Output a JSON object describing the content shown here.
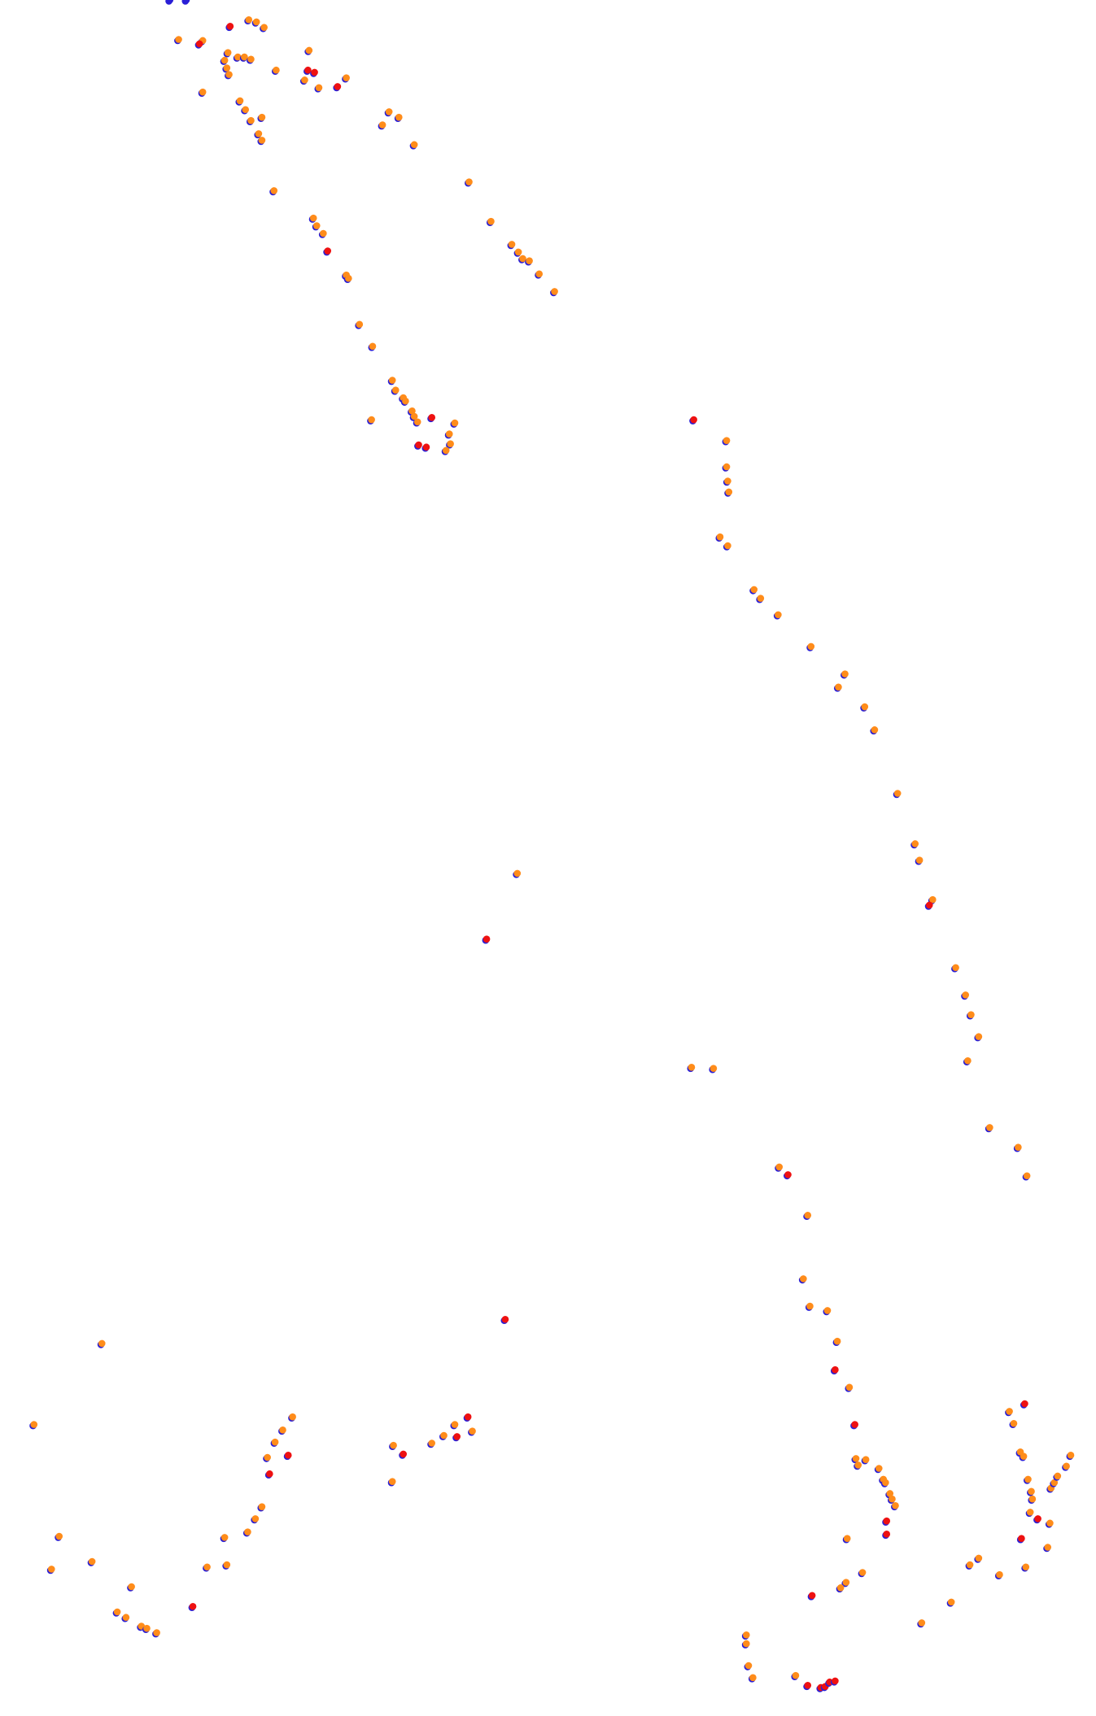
{
  "chart_data": {
    "type": "scatter",
    "xlim": [
      0,
      1000
    ],
    "ylim": [
      1566,
      0
    ],
    "outline_color": "#2a1fd6",
    "series": [
      {
        "color": "#ff8c1a",
        "x": [
          163,
          185,
          227,
          234,
          241,
          208,
          205,
          207,
          209,
          217,
          223,
          229,
          252,
          282,
          278,
          291,
          316,
          185,
          219,
          224,
          229,
          239,
          236,
          239,
          355,
          364,
          349,
          378,
          428,
          250,
          286,
          289,
          295,
          316,
          318,
          448,
          467,
          473,
          477,
          483,
          492,
          506,
          328,
          340,
          358,
          361,
          368,
          370,
          376,
          378,
          381,
          415,
          410,
          411,
          407,
          339,
          663,
          663,
          664,
          665,
          657,
          664,
          688,
          694,
          710,
          740,
          771,
          765,
          789,
          798,
          819,
          835,
          839,
          851,
          872,
          881,
          886,
          893,
          883,
          903,
          929,
          937,
          711,
          737,
          733,
          739,
          755,
          764,
          775,
          781,
          783,
          790,
          802,
          806,
          808,
          812,
          814,
          817,
          773,
          787,
          772,
          767,
          472,
          631,
          651,
          93,
          31,
          267,
          258,
          251,
          244,
          239,
          233,
          226,
          205,
          189,
          207,
          54,
          47,
          84,
          120,
          107,
          115,
          129,
          134,
          143,
          359,
          358,
          394,
          405,
          415,
          431,
          921,
          925,
          931,
          934,
          938,
          941,
          942,
          940,
          958,
          956,
          936,
          912,
          893,
          885,
          868,
          841,
          959,
          962,
          965,
          973,
          977,
          681,
          681,
          683,
          687,
          726
        ],
        "values": [
          36,
          37,
          18,
          20,
          25,
          48,
          55,
          62,
          68,
          52,
          52,
          54,
          64,
          46,
          73,
          80,
          71,
          84,
          92,
          100,
          110,
          107,
          122,
          128,
          102,
          107,
          114,
          132,
          166,
          174,
          199,
          206,
          213,
          251,
          254,
          202,
          223,
          230,
          236,
          238,
          250,
          266,
          296,
          316,
          347,
          356,
          363,
          366,
          375,
          380,
          385,
          386,
          396,
          405,
          411,
          383,
          402,
          426,
          439,
          449,
          490,
          498,
          538,
          546,
          561,
          590,
          615,
          627,
          645,
          666,
          724,
          770,
          785,
          821,
          883,
          908,
          926,
          946,
          968,
          1029,
          1047,
          1073,
          1065,
          1109,
          1167,
          1192,
          1196,
          1224,
          1266,
          1331,
          1337,
          1332,
          1340,
          1350,
          1353,
          1363,
          1368,
          1374,
          1404,
          1435,
          1444,
          1449,
          797,
          974,
          975,
          1226,
          1300,
          1293,
          1305,
          1316,
          1330,
          1375,
          1386,
          1398,
          1403,
          1430,
          1428,
          1402,
          1432,
          1425,
          1448,
          1471,
          1476,
          1484,
          1486,
          1490,
          1319,
          1352,
          1317,
          1310,
          1300,
          1306,
          1288,
          1299,
          1325,
          1329,
          1350,
          1361,
          1368,
          1380,
          1390,
          1412,
          1430,
          1437,
          1422,
          1428,
          1462,
          1481,
          1358,
          1353,
          1347,
          1338,
          1328,
          1492,
          1500,
          1520,
          1531,
          1529
        ]
      },
      {
        "color": "#ee1111",
        "x": [
          210,
          182,
          281,
          287,
          308,
          299,
          394,
          382,
          389,
          633,
          848,
          719,
          762,
          780,
          809,
          809,
          741,
          444,
          461,
          263,
          246,
          176,
          368,
          417,
          427,
          935,
          947,
          932,
          737,
          749,
          753,
          757,
          762
        ],
        "values": [
          24,
          40,
          64,
          66,
          79,
          229,
          381,
          406,
          408,
          383,
          826,
          1072,
          1250,
          1300,
          1388,
          1400,
          1456,
          857,
          1204,
          1328,
          1345,
          1466,
          1327,
          1311,
          1293,
          1281,
          1386,
          1404,
          1538,
          1540,
          1539,
          1535,
          1534
        ]
      },
      {
        "color": "#2a1fd6",
        "x": [
          155,
          170
        ],
        "values": [
          0,
          0
        ]
      }
    ]
  }
}
